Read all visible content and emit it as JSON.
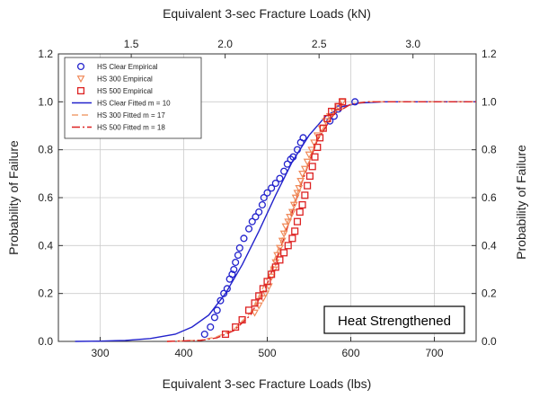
{
  "chart_data": {
    "type": "scatter",
    "title": "",
    "xlabel": "Equivalent 3-sec Fracture Loads (lbs)",
    "top_xlabel": "Equivalent 3-sec Fracture Loads (kN)",
    "ylabel": "Probability of Failure",
    "right_ylabel": "Probability of Failure",
    "xlim": [
      250,
      750
    ],
    "ylim": [
      0.0,
      1.2
    ],
    "x_ticks": [
      "300",
      "400",
      "500",
      "600",
      "700"
    ],
    "x_tick_values": [
      300,
      400,
      500,
      600,
      700
    ],
    "top_x_ticks": [
      "1.5",
      "2.0",
      "2.5",
      "3.0"
    ],
    "top_x_tick_values_kN": [
      1.5,
      2.0,
      2.5,
      3.0
    ],
    "y_ticks": [
      "0.0",
      "0.2",
      "0.4",
      "0.6",
      "0.8",
      "1.0",
      "1.2"
    ],
    "y_tick_values": [
      0.0,
      0.2,
      0.4,
      0.6,
      0.8,
      1.0,
      1.2
    ],
    "grid": true,
    "legend_position": "top-left",
    "annotation": "Heat Strengthened",
    "series": [
      {
        "name": "HS Clear Empirical",
        "kind": "empirical",
        "marker": "circle",
        "color": "#2222cc",
        "x": [
          425,
          432,
          437,
          440,
          444,
          448,
          452,
          455,
          458,
          460,
          462,
          465,
          467,
          472,
          478,
          482,
          486,
          490,
          494,
          496,
          500,
          505,
          510,
          515,
          520,
          524,
          528,
          531,
          536,
          540,
          543,
          575,
          580,
          585,
          605
        ],
        "y": [
          0.03,
          0.06,
          0.1,
          0.13,
          0.17,
          0.2,
          0.22,
          0.26,
          0.28,
          0.3,
          0.33,
          0.36,
          0.39,
          0.43,
          0.47,
          0.5,
          0.52,
          0.54,
          0.57,
          0.6,
          0.62,
          0.64,
          0.66,
          0.68,
          0.71,
          0.74,
          0.76,
          0.77,
          0.8,
          0.83,
          0.85,
          0.92,
          0.94,
          0.97,
          1.0
        ]
      },
      {
        "name": "HS 300 Empirical",
        "kind": "empirical",
        "marker": "triangle-down",
        "color": "#f08a5a",
        "x": [
          485,
          490,
          495,
          498,
          502,
          505,
          508,
          510,
          512,
          515,
          518,
          520,
          522,
          525,
          527,
          530,
          532,
          534,
          536,
          538,
          540,
          542,
          545,
          548,
          550,
          553,
          556,
          560,
          565,
          570,
          575,
          580,
          585,
          590
        ],
        "y": [
          0.12,
          0.15,
          0.18,
          0.2,
          0.23,
          0.27,
          0.3,
          0.33,
          0.36,
          0.39,
          0.42,
          0.45,
          0.48,
          0.5,
          0.52,
          0.54,
          0.57,
          0.6,
          0.62,
          0.64,
          0.67,
          0.7,
          0.72,
          0.75,
          0.78,
          0.8,
          0.83,
          0.86,
          0.89,
          0.92,
          0.94,
          0.96,
          0.98,
          1.0
        ]
      },
      {
        "name": "HS 500 Empirical",
        "kind": "empirical",
        "marker": "square",
        "color": "#dd2222",
        "x": [
          450,
          462,
          470,
          478,
          485,
          490,
          495,
          500,
          505,
          510,
          515,
          520,
          525,
          530,
          533,
          536,
          539,
          542,
          545,
          548,
          551,
          554,
          557,
          560,
          563,
          567,
          572,
          577,
          585,
          590
        ],
        "y": [
          0.03,
          0.06,
          0.09,
          0.13,
          0.16,
          0.19,
          0.22,
          0.25,
          0.28,
          0.31,
          0.34,
          0.37,
          0.4,
          0.43,
          0.46,
          0.5,
          0.54,
          0.57,
          0.61,
          0.65,
          0.69,
          0.73,
          0.77,
          0.81,
          0.85,
          0.89,
          0.93,
          0.96,
          0.98,
          1.0
        ]
      },
      {
        "name": "HS Clear Fitted m = 10",
        "kind": "fitted",
        "dash": "solid",
        "color": "#2222cc",
        "x": [
          270,
          300,
          330,
          360,
          390,
          410,
          430,
          450,
          470,
          490,
          510,
          530,
          550,
          570,
          590,
          610,
          640,
          680,
          750
        ],
        "y": [
          0.0,
          0.001,
          0.004,
          0.012,
          0.03,
          0.06,
          0.11,
          0.2,
          0.32,
          0.46,
          0.61,
          0.75,
          0.86,
          0.94,
          0.98,
          0.995,
          1.0,
          1.0,
          1.0
        ]
      },
      {
        "name": "HS 300 Fitted m = 17",
        "kind": "fitted",
        "dash": "dash",
        "color": "#f0a070",
        "x": [
          380,
          420,
          440,
          460,
          480,
          500,
          520,
          540,
          560,
          580,
          600,
          620,
          660,
          750
        ],
        "y": [
          0.0,
          0.005,
          0.02,
          0.05,
          0.12,
          0.26,
          0.45,
          0.66,
          0.84,
          0.95,
          0.99,
          1.0,
          1.0,
          1.0
        ]
      },
      {
        "name": "HS 500 Fitted m = 18",
        "kind": "fitted",
        "dash": "dash-dot",
        "color": "#dd2222",
        "x": [
          380,
          420,
          440,
          460,
          480,
          500,
          520,
          540,
          560,
          580,
          600,
          620,
          660,
          750
        ],
        "y": [
          0.0,
          0.004,
          0.015,
          0.045,
          0.11,
          0.24,
          0.43,
          0.65,
          0.84,
          0.95,
          0.99,
          1.0,
          1.0,
          1.0
        ]
      }
    ]
  }
}
